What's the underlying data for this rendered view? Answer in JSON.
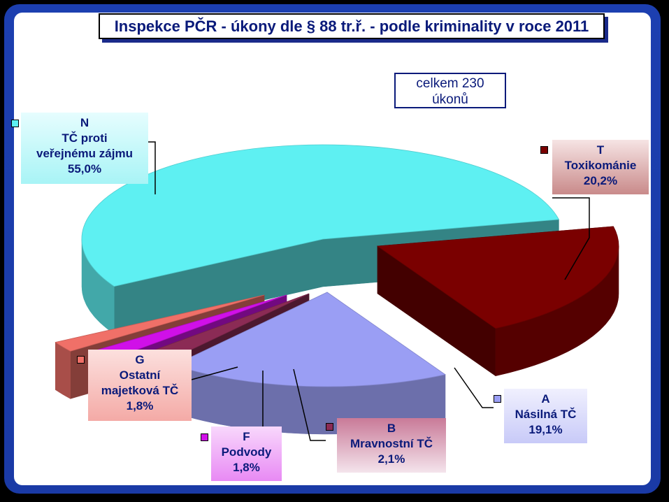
{
  "chart_data": {
    "type": "pie",
    "title": "Inspekce PČR - úkony dle § 88 tr.ř. - podle kriminality v roce 2011",
    "annotation": [
      "celkem 230",
      "úkonů"
    ],
    "slices": [
      {
        "code": "N",
        "name": "TČ proti veřejnému zájmu",
        "name_lines": [
          "TČ proti",
          "veřejnému zájmu"
        ],
        "percent_label": "55,0%",
        "value": 55.0,
        "color": "#5ef0f2"
      },
      {
        "code": "T",
        "name": "Toxikománie",
        "name_lines": [
          "Toxikománie"
        ],
        "percent_label": "20,2%",
        "value": 20.2,
        "color": "#7a0000"
      },
      {
        "code": "A",
        "name": "Násilná TČ",
        "name_lines": [
          "Násilná TČ"
        ],
        "percent_label": "19,1%",
        "value": 19.1,
        "color": "#9a9ef4"
      },
      {
        "code": "B",
        "name": "Mravnostní TČ",
        "name_lines": [
          "Mravnostní TČ"
        ],
        "percent_label": "2,1%",
        "value": 2.1,
        "color": "#8b2b55"
      },
      {
        "code": "F",
        "name": "Podvody",
        "name_lines": [
          "Podvody"
        ],
        "percent_label": "1,8%",
        "value": 1.8,
        "color": "#d010e8"
      },
      {
        "code": "G",
        "name": "Ostatní majetková TČ",
        "name_lines": [
          "Ostatní",
          "majetková TČ"
        ],
        "percent_label": "1,8%",
        "value": 1.8,
        "color": "#f07068"
      }
    ]
  }
}
